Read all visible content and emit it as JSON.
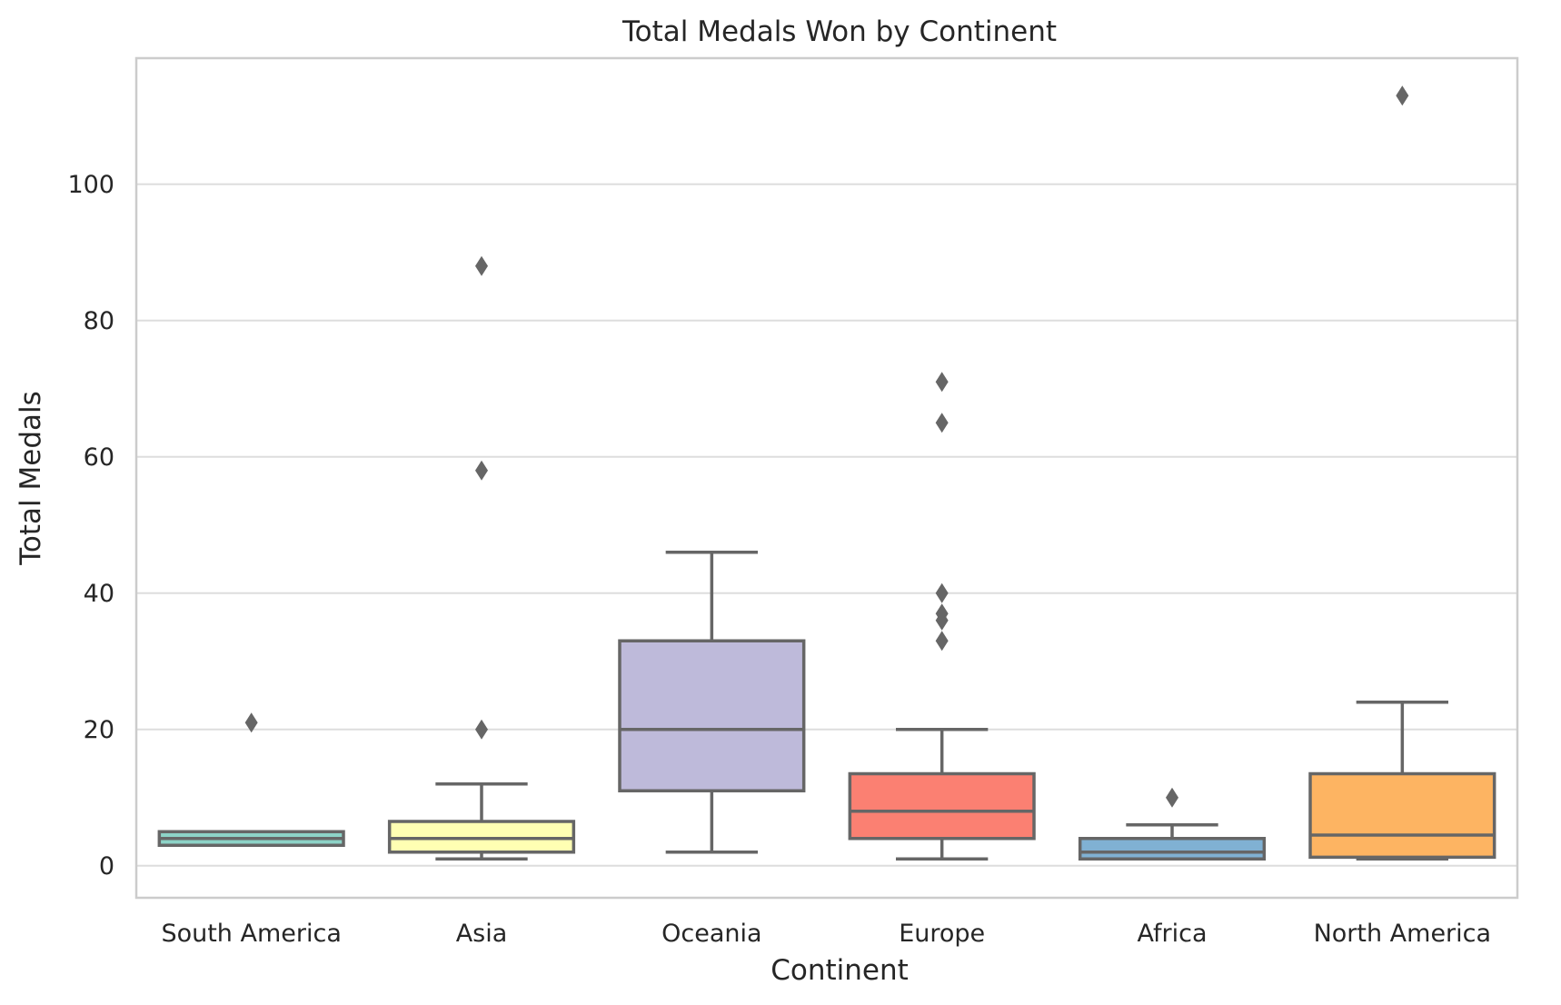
{
  "chart_data": {
    "type": "box",
    "title": "Total Medals Won by Continent",
    "xlabel": "Continent",
    "ylabel": "Total Medals",
    "ylim": [
      -4.7,
      118.5
    ],
    "yticks": [
      0,
      20,
      40,
      60,
      80,
      100
    ],
    "grid": true,
    "categories": [
      "South America",
      "Asia",
      "Oceania",
      "Europe",
      "Africa",
      "North America"
    ],
    "boxes": [
      {
        "category": "South America",
        "color": "#8dd3c7",
        "whisker_low": 3,
        "q1": 3,
        "median": 4,
        "q3": 5,
        "whisker_high": 5,
        "outliers": [
          21
        ]
      },
      {
        "category": "Asia",
        "color": "#ffffb3",
        "whisker_low": 1,
        "q1": 2,
        "median": 4,
        "q3": 6.5,
        "whisker_high": 12,
        "outliers": [
          20,
          58,
          88
        ]
      },
      {
        "category": "Oceania",
        "color": "#bebada",
        "whisker_low": 2,
        "q1": 11,
        "median": 20,
        "q3": 33,
        "whisker_high": 46,
        "outliers": []
      },
      {
        "category": "Europe",
        "color": "#fb8072",
        "whisker_low": 1,
        "q1": 4,
        "median": 8,
        "q3": 13.5,
        "whisker_high": 20,
        "outliers": [
          33,
          36,
          37,
          40,
          65,
          71
        ]
      },
      {
        "category": "Africa",
        "color": "#80b1d3",
        "whisker_low": 1,
        "q1": 1,
        "median": 2,
        "q3": 4,
        "whisker_high": 6,
        "outliers": [
          10
        ]
      },
      {
        "category": "North America",
        "color": "#fdb462",
        "whisker_low": 1,
        "q1": 1.25,
        "median": 4.5,
        "q3": 13.5,
        "whisker_high": 24,
        "outliers": [
          113
        ]
      }
    ]
  }
}
